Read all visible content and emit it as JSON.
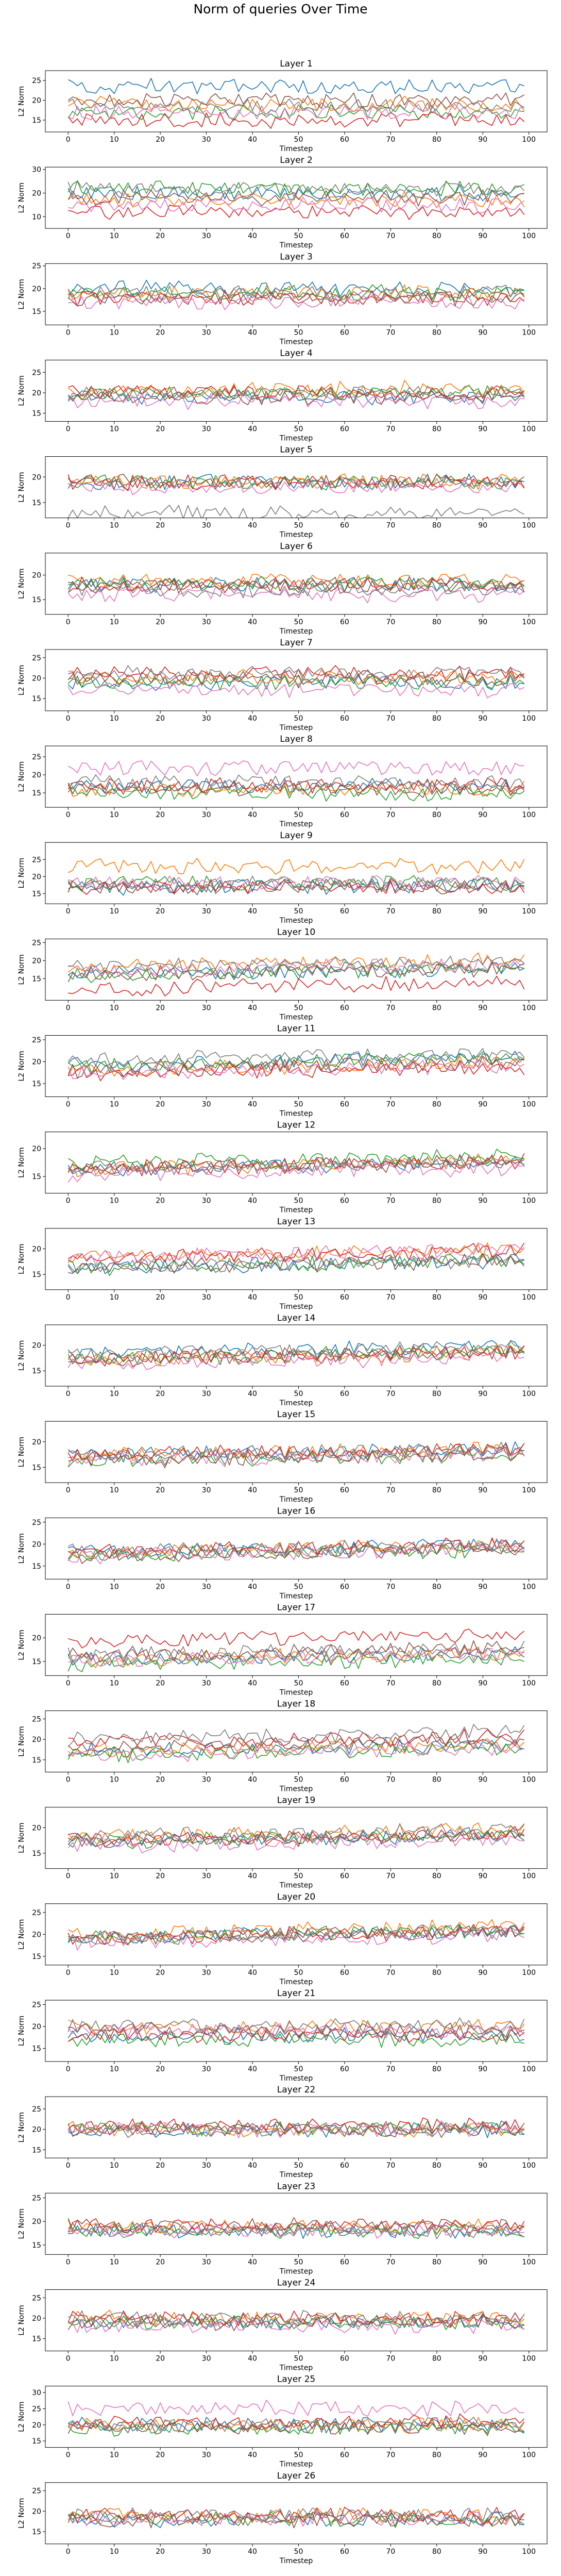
{
  "figure": {
    "title": "Norm of queries Over Time"
  },
  "chart_data": {
    "type": "line",
    "title": "Norm of queries Over Time",
    "x": "timesteps 0-99",
    "xlabel": "Timestep",
    "ylabel": "L2 Norm",
    "xticks": [
      0,
      10,
      20,
      30,
      40,
      50,
      60,
      70,
      80,
      90,
      100
    ],
    "xlim": [
      -4.95,
      103.95
    ],
    "grid": false,
    "legend": "none",
    "series_colors": [
      "#1f77b4",
      "#ff7f0e",
      "#2ca02c",
      "#d62728",
      "#e377c2",
      "#7f7f7f",
      "#8c564b"
    ],
    "panels": [
      {
        "title": "Layer 1",
        "yticks": [
          15,
          20,
          25
        ],
        "ylim": [
          12,
          27.5
        ],
        "series_means": [
          23.5,
          19.0,
          17.0,
          15.0,
          17.0,
          18.5,
          20.0
        ]
      },
      {
        "title": "Layer 2",
        "yticks": [
          10,
          20,
          30
        ],
        "ylim": [
          5,
          31
        ],
        "series_means": [
          20,
          17,
          22,
          12,
          15,
          22,
          18
        ]
      },
      {
        "title": "Layer 3",
        "yticks": [
          15,
          20,
          25
        ],
        "ylim": [
          12,
          25.5
        ],
        "series_means": [
          20,
          19,
          19,
          18,
          17,
          19,
          18
        ]
      },
      {
        "title": "Layer 4",
        "yticks": [
          15,
          20,
          25
        ],
        "ylim": [
          13,
          28
        ],
        "series_means": [
          19,
          21,
          20,
          20,
          18,
          20,
          19
        ]
      },
      {
        "title": "Layer 5",
        "yticks": [
          15,
          20
        ],
        "ylim": [
          12,
          24
        ],
        "series_means": [
          19,
          19,
          19,
          19,
          18,
          13,
          19
        ]
      },
      {
        "title": "Layer 6",
        "yticks": [
          15,
          20
        ],
        "ylim": [
          12,
          24.5
        ],
        "series_means": [
          18,
          19,
          18,
          18,
          16,
          17,
          18
        ]
      },
      {
        "title": "Layer 7",
        "yticks": [
          15,
          20,
          25
        ],
        "ylim": [
          12,
          27
        ],
        "series_means": [
          19,
          20,
          19,
          21,
          17,
          21,
          20
        ]
      },
      {
        "title": "Layer 8",
        "yticks": [
          15,
          20,
          25
        ],
        "ylim": [
          11,
          28
        ],
        "series_means": [
          17,
          16,
          15,
          17,
          22,
          18,
          16
        ]
      },
      {
        "title": "Layer 9",
        "yticks": [
          15,
          20,
          25
        ],
        "ylim": [
          12,
          30
        ],
        "series_means": [
          17,
          23,
          18,
          17,
          18,
          18,
          17
        ]
      },
      {
        "title": "Layer 10",
        "yticks": [
          15,
          20,
          25
        ],
        "ylim": [
          9,
          26
        ],
        "series_means": [
          17,
          19,
          17,
          13,
          18,
          19,
          17
        ]
      },
      {
        "title": "Layer 11",
        "yticks": [
          15,
          20,
          25
        ],
        "ylim": [
          12,
          26
        ],
        "series_means": [
          20,
          19,
          20,
          18,
          18,
          21,
          19
        ]
      },
      {
        "title": "Layer 12",
        "yticks": [
          15,
          20
        ],
        "ylim": [
          12,
          23
        ],
        "series_means": [
          17,
          17,
          18,
          17,
          16,
          17,
          17
        ]
      },
      {
        "title": "Layer 13",
        "yticks": [
          15,
          20
        ],
        "ylim": [
          12,
          24
        ],
        "series_means": [
          17,
          19,
          17,
          19,
          19,
          17,
          17
        ]
      },
      {
        "title": "Layer 14",
        "yticks": [
          15,
          20
        ],
        "ylim": [
          12,
          24
        ],
        "series_means": [
          19,
          18,
          18,
          18,
          17,
          19,
          18
        ]
      },
      {
        "title": "Layer 15",
        "yticks": [
          15,
          20
        ],
        "ylim": [
          12,
          24
        ],
        "series_means": [
          18,
          18,
          17,
          18,
          17,
          18,
          17
        ]
      },
      {
        "title": "Layer 16",
        "yticks": [
          15,
          20,
          25
        ],
        "ylim": [
          12,
          26
        ],
        "series_means": [
          19,
          19,
          18,
          19,
          18,
          19,
          18
        ]
      },
      {
        "title": "Layer 17",
        "yticks": [
          15,
          20
        ],
        "ylim": [
          12,
          25
        ],
        "series_means": [
          16,
          16,
          15,
          20,
          16,
          17,
          17
        ]
      },
      {
        "title": "Layer 18",
        "yticks": [
          15,
          20,
          25
        ],
        "ylim": [
          12,
          27
        ],
        "series_means": [
          18,
          18,
          17,
          20,
          17,
          21,
          19
        ]
      },
      {
        "title": "Layer 19",
        "yticks": [
          15,
          20
        ],
        "ylim": [
          12,
          24
        ],
        "series_means": [
          18,
          19,
          18,
          18,
          17,
          19,
          18
        ]
      },
      {
        "title": "Layer 20",
        "yticks": [
          15,
          20,
          25
        ],
        "ylim": [
          13,
          27
        ],
        "series_means": [
          20,
          21,
          20,
          20,
          19,
          20,
          20
        ]
      },
      {
        "title": "Layer 21",
        "yticks": [
          15,
          20,
          25
        ],
        "ylim": [
          12,
          26
        ],
        "series_means": [
          18,
          20,
          17,
          18,
          19,
          20,
          19
        ]
      },
      {
        "title": "Layer 22",
        "yticks": [
          15,
          20,
          25
        ],
        "ylim": [
          13,
          28
        ],
        "series_means": [
          20,
          20,
          20,
          21,
          20,
          20,
          20
        ]
      },
      {
        "title": "Layer 23",
        "yticks": [
          15,
          20,
          25
        ],
        "ylim": [
          13,
          26
        ],
        "series_means": [
          18,
          19,
          18,
          19,
          18,
          18,
          19
        ]
      },
      {
        "title": "Layer 24",
        "yticks": [
          15,
          20,
          25
        ],
        "ylim": [
          12,
          27
        ],
        "series_means": [
          19,
          20,
          19,
          20,
          18,
          20,
          19
        ]
      },
      {
        "title": "Layer 25",
        "yticks": [
          15,
          20,
          25,
          30
        ],
        "ylim": [
          13,
          32
        ],
        "series_means": [
          20,
          20,
          19,
          21,
          25,
          20,
          19
        ]
      },
      {
        "title": "Layer 26",
        "yticks": [
          15,
          20,
          25
        ],
        "ylim": [
          12,
          27
        ],
        "series_means": [
          18,
          19,
          18,
          19,
          18,
          19,
          18
        ]
      }
    ]
  }
}
